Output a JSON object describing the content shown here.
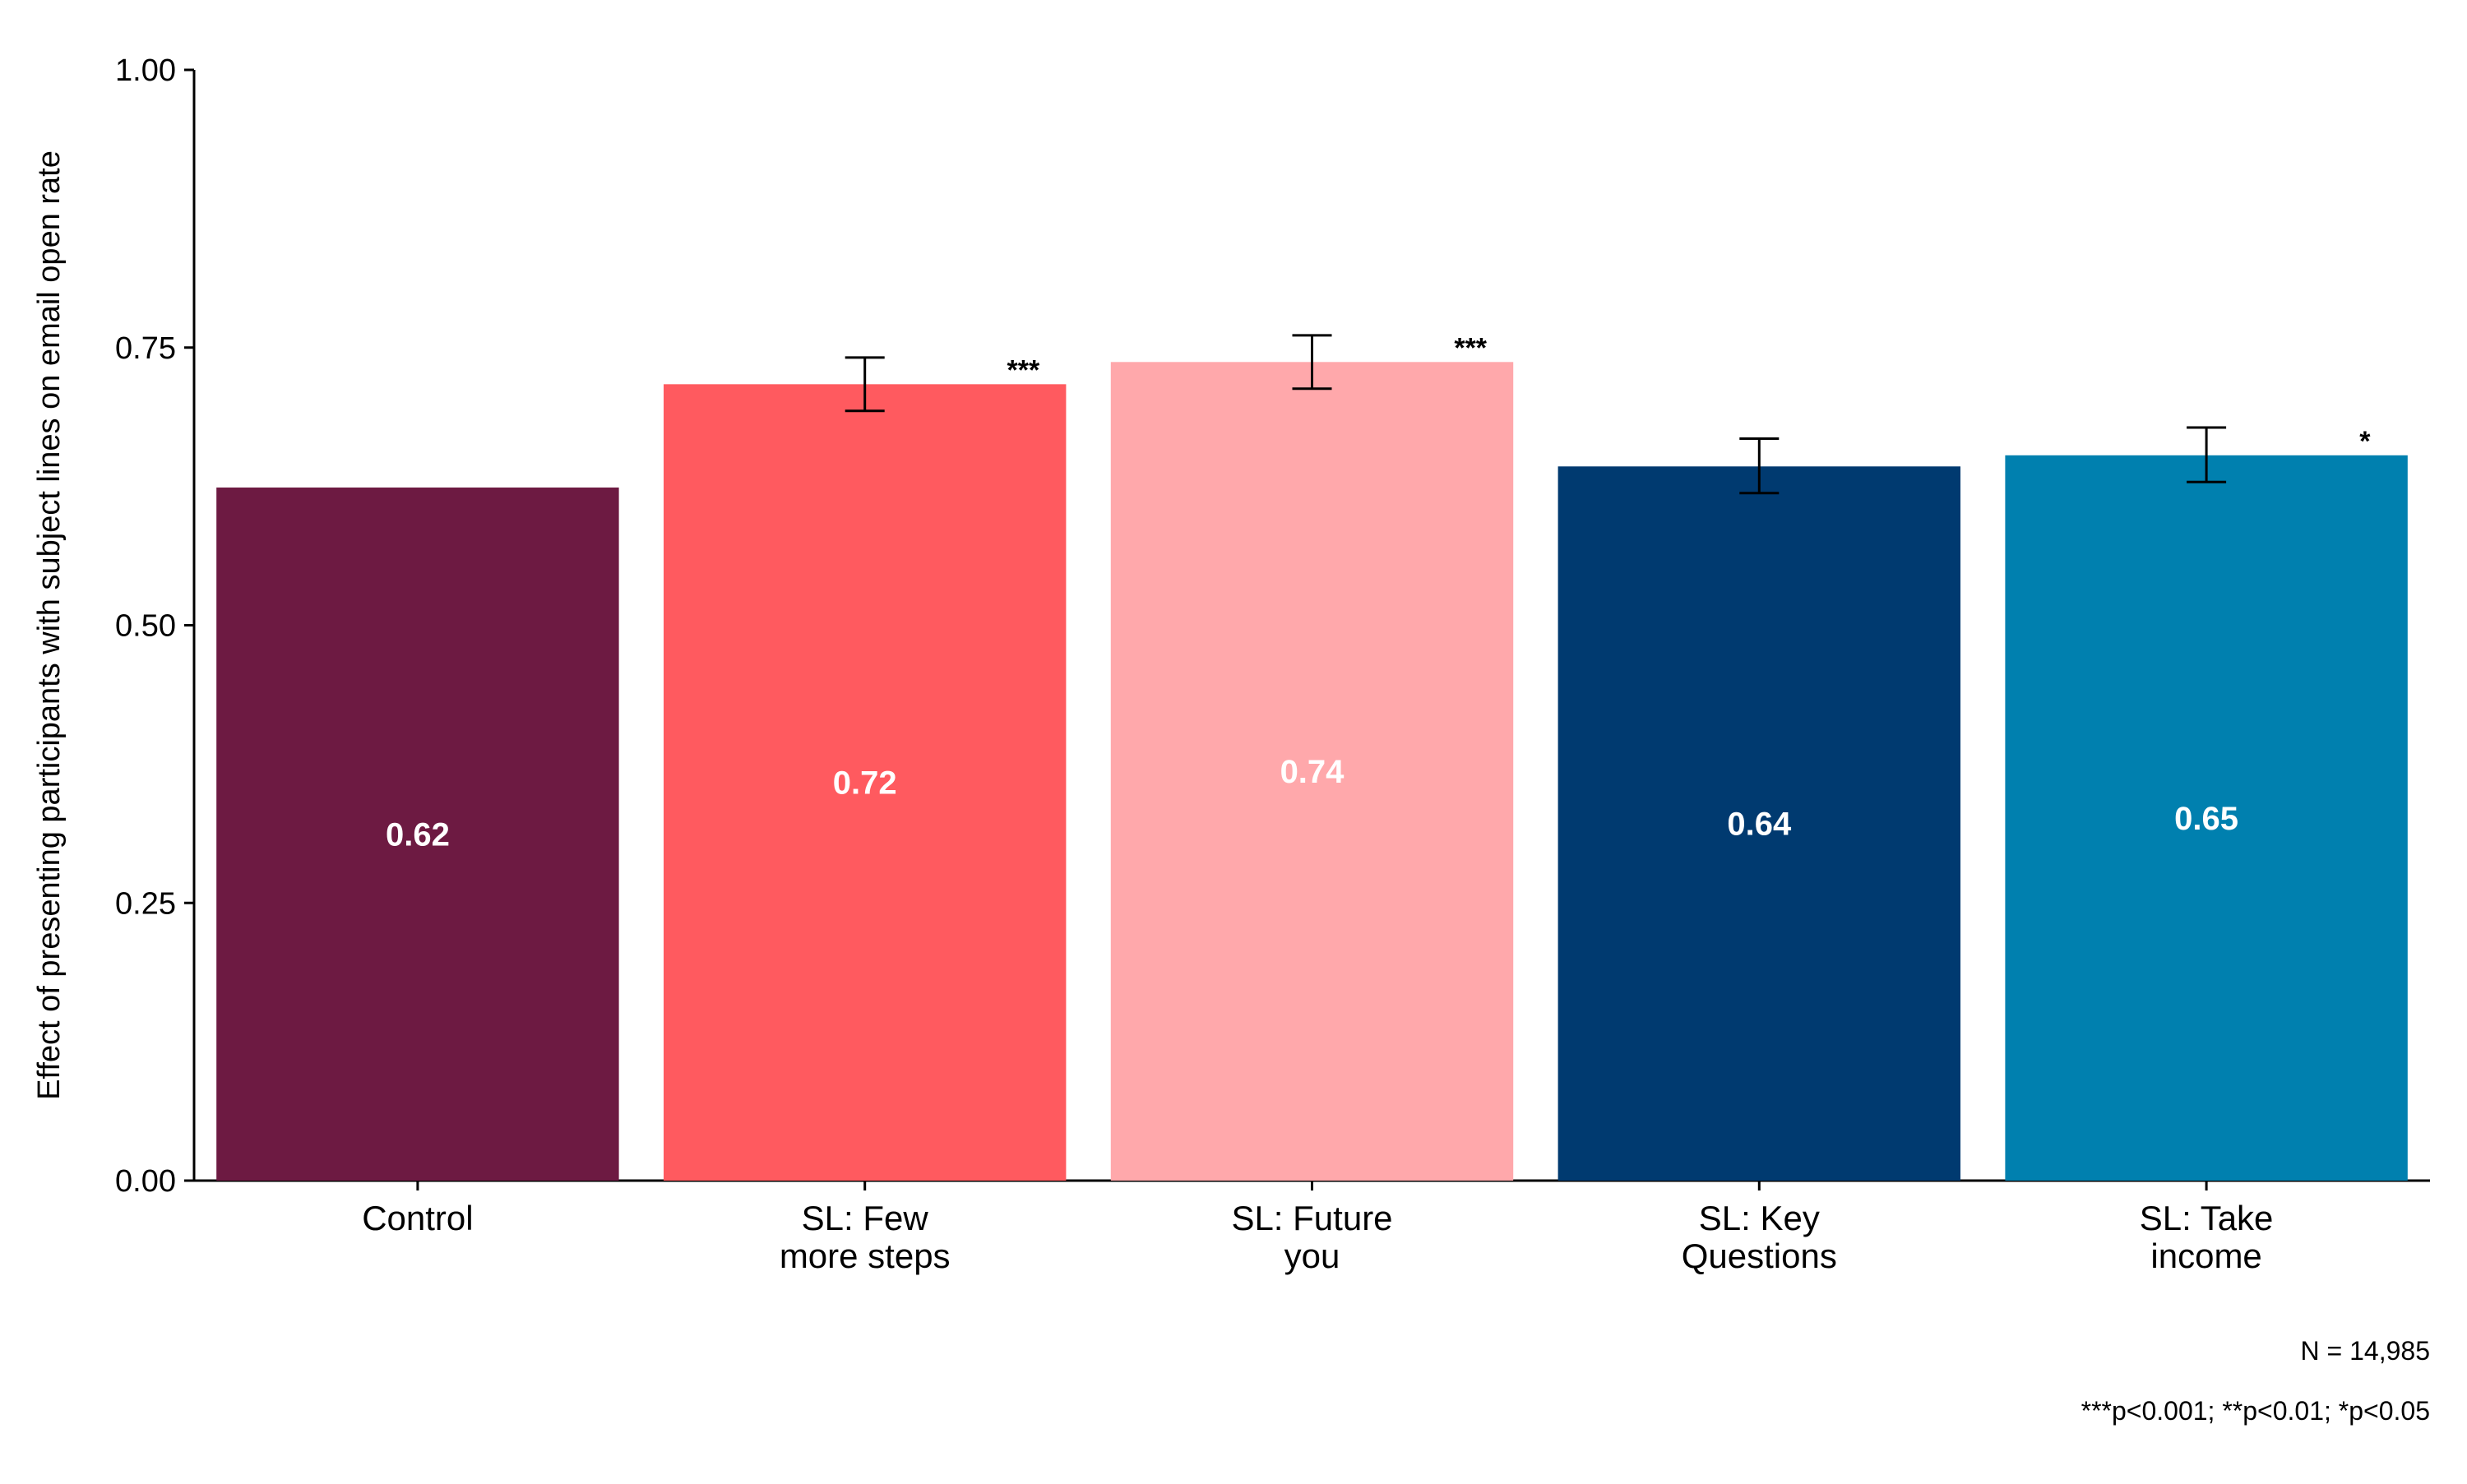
{
  "chart_data": {
    "type": "bar",
    "title": "",
    "xlabel": "",
    "ylabel": "Effect of presenting participants with subject lines on email open rate",
    "ylim": [
      0,
      1
    ],
    "yticks": [
      "0.00",
      "0.25",
      "0.50",
      "0.75",
      "1.00"
    ],
    "ytick_values": [
      0,
      0.25,
      0.5,
      0.75,
      1.0
    ],
    "grid": false,
    "categories": [
      [
        "Control"
      ],
      [
        "SL: Few",
        "more steps"
      ],
      [
        "SL: Future",
        "you"
      ],
      [
        "SL: Key",
        "Questions"
      ],
      [
        "SL: Take",
        "income"
      ]
    ],
    "values": [
      0.624,
      0.717,
      0.737,
      0.643,
      0.653
    ],
    "value_labels": [
      "0.62",
      "0.72",
      "0.74",
      "0.64",
      "0.65"
    ],
    "error_bars": [
      null,
      [
        0.693,
        0.741
      ],
      [
        0.713,
        0.761
      ],
      [
        0.619,
        0.668
      ],
      [
        0.629,
        0.678
      ]
    ],
    "significance": [
      "",
      "***",
      "***",
      "",
      "*"
    ],
    "colors": [
      "#6D1A42",
      "#FF5A5F",
      "#FFA8AB",
      "#003A70",
      "#0080AF"
    ]
  },
  "notes": {
    "n": "N = 14,985",
    "pvalues": "***p<0.001; **p<0.01; *p<0.05"
  }
}
